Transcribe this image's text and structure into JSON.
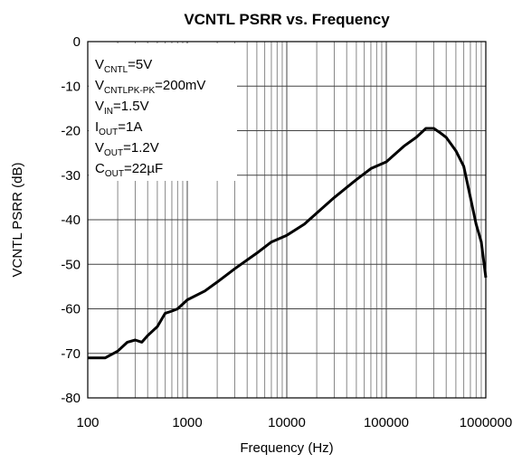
{
  "chart_data": {
    "type": "line",
    "title": "VCNTL PSRR vs. Frequency",
    "xlabel": "Frequency (Hz)",
    "ylabel": "VCNTL PSRR (dB)",
    "xscale": "log",
    "xlim": [
      100,
      1000000
    ],
    "xticks": [
      100,
      1000,
      10000,
      100000,
      1000000
    ],
    "ylim": [
      -80,
      0
    ],
    "yticks": [
      -80,
      -70,
      -60,
      -50,
      -40,
      -30,
      -20,
      -10,
      0
    ],
    "grid": true,
    "minor_grid": true,
    "color": "#000000",
    "annotations": [
      {
        "main": "V",
        "sub": "CNTL",
        "rest": "=5V"
      },
      {
        "main": "V",
        "sub": "CNTLPK-PK",
        "rest": "=200mV"
      },
      {
        "main": "V",
        "sub": "IN",
        "rest": "=1.5V"
      },
      {
        "main": "I",
        "sub": "OUT",
        "rest": "=1A"
      },
      {
        "main": "V",
        "sub": "OUT",
        "rest": "=1.2V"
      },
      {
        "main": "C",
        "sub": "OUT",
        "rest": "=22µF"
      }
    ],
    "x": [
      100,
      150,
      200,
      250,
      300,
      350,
      400,
      500,
      600,
      700,
      800,
      1000,
      1500,
      2000,
      3000,
      5000,
      7000,
      10000,
      15000,
      20000,
      30000,
      50000,
      70000,
      100000,
      150000,
      200000,
      250000,
      300000,
      350000,
      400000,
      500000,
      600000,
      700000,
      800000,
      900000,
      1000000
    ],
    "values": [
      -71,
      -71,
      -69.5,
      -67.5,
      -67,
      -67.5,
      -66,
      -64,
      -61,
      -60.5,
      -60,
      -58,
      -56,
      -54,
      -51,
      -47.5,
      -45,
      -43.5,
      -41,
      -38.5,
      -35,
      -31,
      -28.5,
      -27,
      -23.5,
      -21.5,
      -19.5,
      -19.5,
      -20.5,
      -21.5,
      -24.5,
      -28,
      -35,
      -41,
      -45,
      -53
    ]
  }
}
